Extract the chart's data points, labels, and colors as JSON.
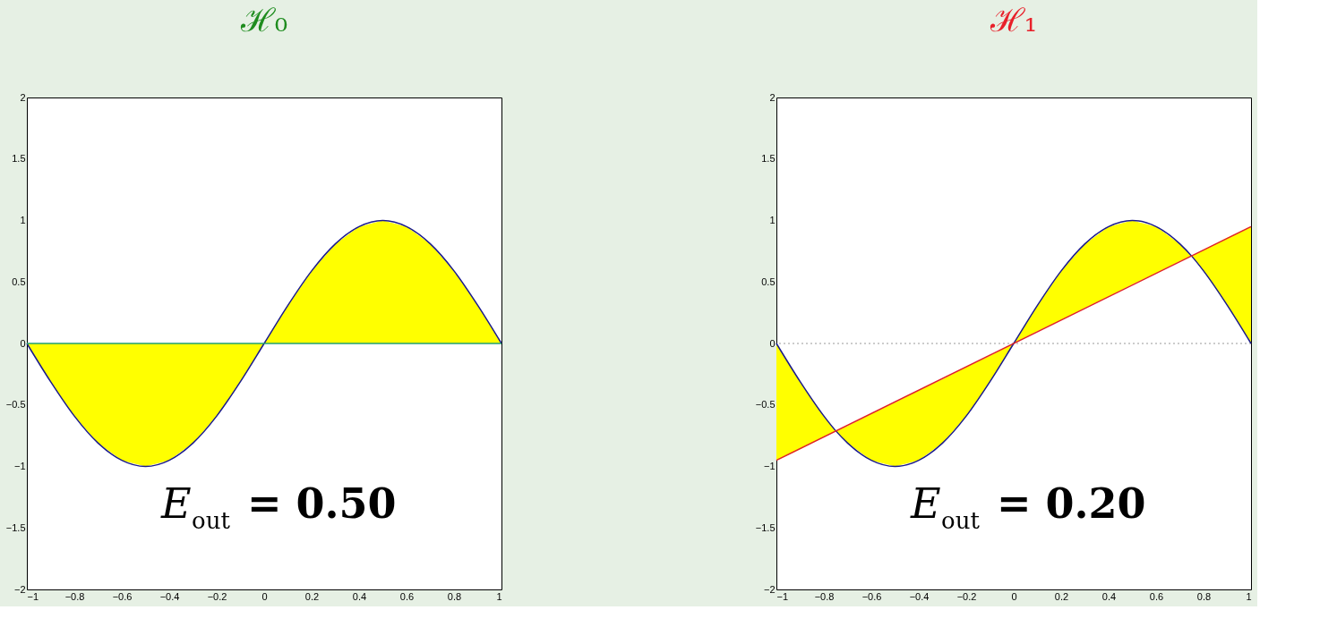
{
  "chart_data": [
    {
      "type": "line",
      "title": "ℋ₀",
      "xlim": [
        -1,
        1
      ],
      "ylim": [
        -2,
        2
      ],
      "xticks": [
        -1,
        -0.8,
        -0.6,
        -0.4,
        -0.2,
        0,
        0.2,
        0.4,
        0.6,
        0.8,
        1
      ],
      "yticks": [
        -2,
        -1.5,
        -1,
        -0.5,
        0,
        0.5,
        1,
        1.5,
        2
      ],
      "grid": false,
      "annotations": [
        "E$_{out}$ = 0.50"
      ],
      "series": [
        {
          "color": "#1a1a8c",
          "x": [
            -1,
            -0.9,
            -0.8,
            -0.7,
            -0.6,
            -0.5,
            -0.4,
            -0.3,
            -0.2,
            -0.1,
            0,
            0.1,
            0.2,
            0.3,
            0.4,
            0.5,
            0.6,
            0.7,
            0.8,
            0.9,
            1
          ],
          "values": [
            0,
            -0.31,
            -0.59,
            -0.81,
            -0.95,
            -1,
            -0.95,
            -0.81,
            -0.59,
            -0.31,
            0,
            0.31,
            0.59,
            0.81,
            0.95,
            1,
            0.95,
            0.81,
            0.59,
            0.31,
            0
          ],
          "lower": [
            0,
            -0.31,
            -0.59,
            -0.81,
            -0.95,
            -1,
            -0.95,
            -0.81,
            -0.59,
            -0.31,
            0,
            0,
            0,
            0,
            0,
            0,
            0,
            0,
            0,
            0,
            0
          ],
          "upper": [
            0,
            0,
            0,
            0,
            0,
            0,
            0,
            0,
            0,
            0,
            0,
            0.31,
            0.59,
            0.81,
            0.95,
            1,
            0.95,
            0.81,
            0.59,
            0.31,
            0
          ]
        },
        {
          "type": "line",
          "color": "#20a070",
          "x": [
            -1,
            1
          ],
          "values": [
            0,
            0
          ]
        }
      ]
    },
    {
      "type": "line",
      "title": "ℋ₁",
      "xlim": [
        -1,
        1
      ],
      "ylim": [
        -2,
        2
      ],
      "xticks": [
        -1,
        -0.8,
        -0.6,
        -0.4,
        -0.2,
        0,
        0.2,
        0.4,
        0.6,
        0.8,
        1
      ],
      "yticks": [
        -2,
        -1.5,
        -1,
        -0.5,
        0,
        0.5,
        1,
        1.5,
        2
      ],
      "grid": false,
      "annotations": [
        "E$_{out}$ = 0.20"
      ],
      "ref_lines": [
        {
          "axis": "y",
          "value": 0,
          "color": "#999999",
          "line_style": "dotted"
        }
      ],
      "series": [
        {
          "color": "#1a1a8c",
          "x": [
            -1,
            -0.9,
            -0.8,
            -0.75,
            -0.7,
            -0.6,
            -0.5,
            -0.4,
            -0.3,
            -0.2,
            -0.1,
            0,
            0.1,
            0.2,
            0.3,
            0.4,
            0.5,
            0.6,
            0.7,
            0.75,
            0.8,
            0.9,
            1
          ],
          "values": [
            0,
            -0.31,
            -0.59,
            -0.71,
            -0.81,
            -0.95,
            -1,
            -0.95,
            -0.81,
            -0.59,
            -0.31,
            0,
            0.31,
            0.59,
            0.81,
            0.95,
            1,
            0.95,
            0.81,
            0.71,
            0.59,
            0.31,
            0
          ],
          "lower": [
            -0.95,
            -0.86,
            -0.76,
            -0.71,
            -0.81,
            -0.95,
            -1,
            -0.95,
            -0.81,
            -0.59,
            -0.31,
            0,
            0.1,
            0.19,
            0.29,
            0.38,
            0.48,
            0.57,
            0.67,
            0.71,
            0.59,
            0.31,
            0
          ],
          "upper": [
            0,
            -0.31,
            -0.59,
            -0.71,
            -0.67,
            -0.57,
            -0.48,
            -0.38,
            -0.29,
            -0.19,
            -0.1,
            0,
            0.31,
            0.59,
            0.81,
            0.95,
            1,
            0.95,
            0.81,
            0.71,
            0.76,
            0.86,
            0.95
          ]
        },
        {
          "type": "line",
          "color": "#e0202a",
          "x": [
            -1,
            1
          ],
          "values": [
            -0.95,
            0.95
          ]
        }
      ]
    }
  ]
}
